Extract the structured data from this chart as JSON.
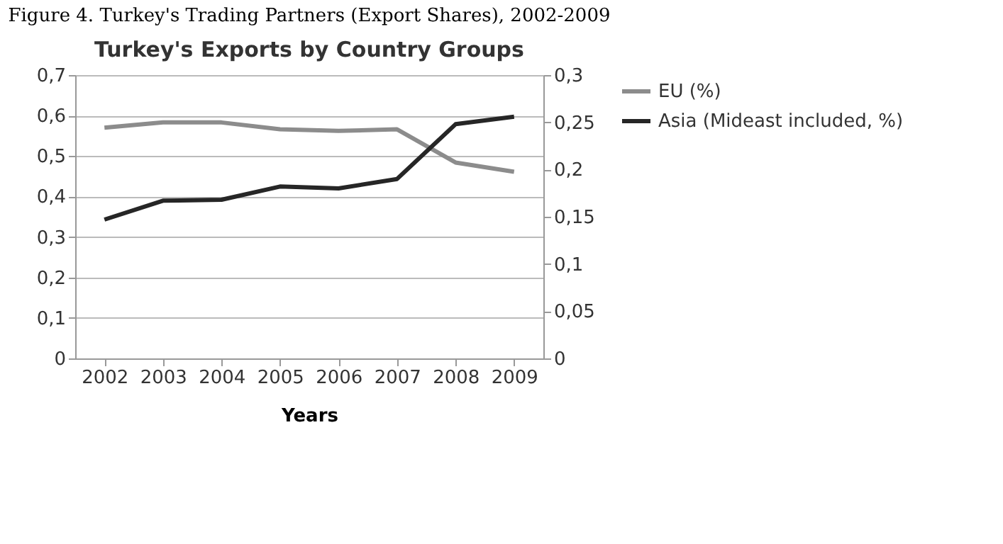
{
  "chart_data": {
    "type": "line",
    "title": "Figure 4. Turkey's Trading Partners (Export Shares), 2002-2009",
    "subtitle": "Turkey's Exports by Country Groups",
    "xlabel": "Years",
    "categories": [
      "2002",
      "2003",
      "2004",
      "2005",
      "2006",
      "2007",
      "2008",
      "2009"
    ],
    "series": [
      {
        "name": "EU (%)",
        "color": "#8c8c8c",
        "values": [
          0.57,
          0.583,
          0.583,
          0.566,
          0.562,
          0.566,
          0.484,
          0.461
        ]
      },
      {
        "name": "Asia (Mideast included, %)",
        "color": "#262626",
        "axis": "y2",
        "values": [
          0.147,
          0.167,
          0.168,
          0.182,
          0.18,
          0.19,
          0.248,
          0.256
        ]
      }
    ],
    "ylim": [
      0,
      0.7
    ],
    "yticks": [
      {
        "value": 0,
        "label": "0"
      },
      {
        "value": 0.1,
        "label": "0,1"
      },
      {
        "value": 0.2,
        "label": "0,2"
      },
      {
        "value": 0.3,
        "label": "0,3"
      },
      {
        "value": 0.4,
        "label": "0,4"
      },
      {
        "value": 0.5,
        "label": "0,5"
      },
      {
        "value": 0.6,
        "label": "0,6"
      },
      {
        "value": 0.7,
        "label": "0,7"
      }
    ],
    "y2lim": [
      0,
      0.3
    ],
    "y2ticks": [
      {
        "value": 0,
        "label": "0"
      },
      {
        "value": 0.05,
        "label": "0,05"
      },
      {
        "value": 0.1,
        "label": "0,1"
      },
      {
        "value": 0.15,
        "label": "0,15"
      },
      {
        "value": 0.2,
        "label": "0,2"
      },
      {
        "value": 0.25,
        "label": "0,25"
      },
      {
        "value": 0.3,
        "label": "0,3"
      }
    ],
    "grid": "y",
    "legend": "right",
    "marker": "none",
    "line_style": "solid"
  }
}
